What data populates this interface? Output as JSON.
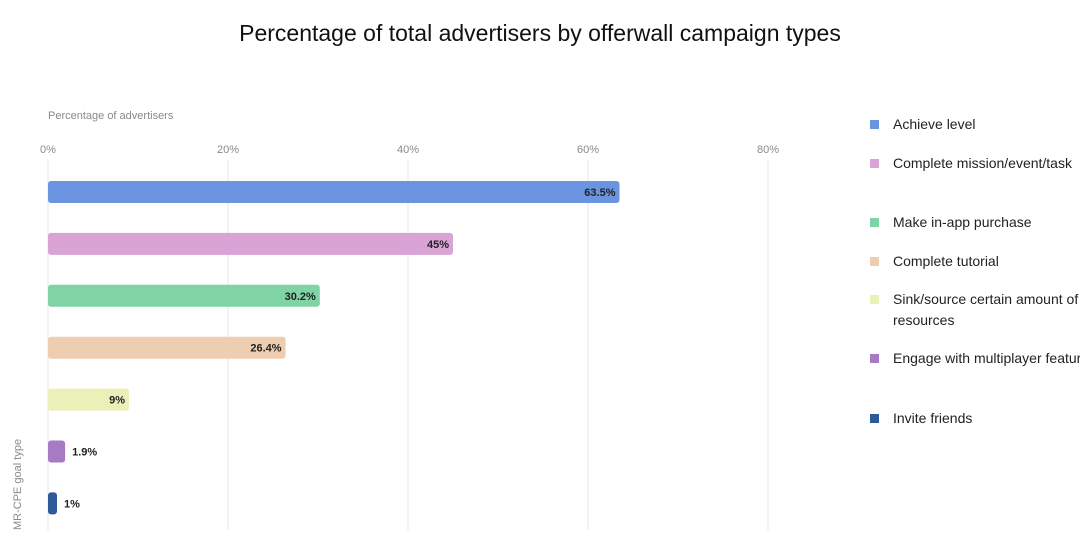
{
  "chart_data": {
    "type": "bar",
    "orientation": "horizontal",
    "title": "Percentage of total advertisers by offerwall campaign types",
    "xlabel": "Percentage of advertisers",
    "ylabel": "MR-CPE goal type",
    "xlim": [
      0,
      80
    ],
    "xticks": [
      "0%",
      "20%",
      "40%",
      "60%",
      "80%"
    ],
    "grid": true,
    "legend_position": "right",
    "categories": [
      "Achieve level",
      "Complete mission/event/task",
      "Make in-app purchase",
      "Complete tutorial",
      "Sink/source certain amount of resources",
      "Engage with multiplayer features",
      "Invite friends"
    ],
    "values": [
      63.5,
      45,
      30.2,
      26.4,
      9,
      1.9,
      1
    ],
    "value_labels": [
      "63.5%",
      "45%",
      "30.2%",
      "26.4%",
      "9%",
      "1.9%",
      "1%"
    ],
    "colors": [
      "#6a93e0",
      "#d9a3d6",
      "#7fd3a4",
      "#eecdb0",
      "#eaf0b8",
      "#a77ac3",
      "#2f5a98"
    ]
  }
}
